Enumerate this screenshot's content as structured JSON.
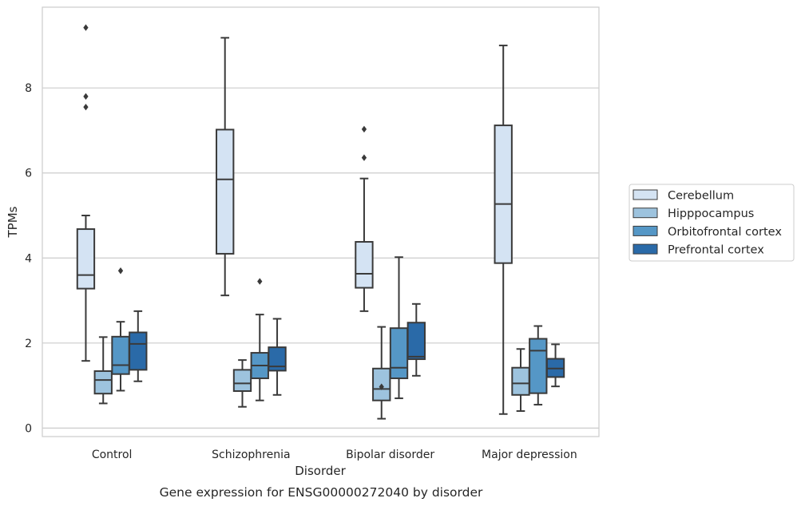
{
  "chart_data": {
    "type": "box",
    "title": "",
    "caption": "Gene expression for ENSG00000272040 by disorder",
    "xlabel": "Disorder",
    "ylabel": "TPMs",
    "ylim": [
      -0.2,
      9.9
    ],
    "yticks": [
      0,
      2,
      4,
      6,
      8
    ],
    "grid": "horizontal",
    "legend_position": "right",
    "categories": [
      "Control",
      "Schizophrenia",
      "Bipolar disorder",
      "Major depression"
    ],
    "series": [
      {
        "name": "Cerebellum",
        "color": "#d4e3f3",
        "boxes": [
          {
            "whislo": 1.58,
            "q1": 3.28,
            "med": 3.6,
            "q3": 4.68,
            "whishi": 5.0,
            "fliers": [
              7.55,
              7.8,
              9.42
            ]
          },
          {
            "whislo": 3.12,
            "q1": 4.1,
            "med": 5.85,
            "q3": 7.02,
            "whishi": 9.18,
            "fliers": []
          },
          {
            "whislo": 2.75,
            "q1": 3.3,
            "med": 3.63,
            "q3": 4.38,
            "whishi": 5.87,
            "fliers": [
              6.36,
              7.03
            ]
          },
          {
            "whislo": 0.33,
            "q1": 3.88,
            "med": 5.27,
            "q3": 7.12,
            "whishi": 9.0,
            "fliers": []
          }
        ]
      },
      {
        "name": "Hipppocampus",
        "color": "#9dc3de",
        "boxes": [
          {
            "whislo": 0.58,
            "q1": 0.81,
            "med": 1.13,
            "q3": 1.34,
            "whishi": 2.14,
            "fliers": []
          },
          {
            "whislo": 0.5,
            "q1": 0.87,
            "med": 1.05,
            "q3": 1.37,
            "whishi": 1.6,
            "fliers": []
          },
          {
            "whislo": 0.22,
            "q1": 0.65,
            "med": 0.92,
            "q3": 1.4,
            "whishi": 2.38,
            "fliers": [
              0.97
            ]
          },
          {
            "whislo": 0.4,
            "q1": 0.78,
            "med": 1.05,
            "q3": 1.42,
            "whishi": 1.86,
            "fliers": []
          }
        ]
      },
      {
        "name": "Orbitofrontal cortex",
        "color": "#5597c6",
        "boxes": [
          {
            "whislo": 0.88,
            "q1": 1.27,
            "med": 1.48,
            "q3": 2.15,
            "whishi": 2.5,
            "fliers": [
              3.7
            ]
          },
          {
            "whislo": 0.65,
            "q1": 1.17,
            "med": 1.47,
            "q3": 1.77,
            "whishi": 2.67,
            "fliers": [
              3.45
            ]
          },
          {
            "whislo": 0.7,
            "q1": 1.17,
            "med": 1.42,
            "q3": 2.35,
            "whishi": 4.02,
            "fliers": []
          },
          {
            "whislo": 0.55,
            "q1": 0.82,
            "med": 1.82,
            "q3": 2.1,
            "whishi": 2.4,
            "fliers": []
          }
        ]
      },
      {
        "name": "Prefrontal cortex",
        "color": "#2a6aa8",
        "boxes": [
          {
            "whislo": 1.1,
            "q1": 1.37,
            "med": 1.98,
            "q3": 2.25,
            "whishi": 2.75,
            "fliers": []
          },
          {
            "whislo": 0.78,
            "q1": 1.35,
            "med": 1.45,
            "q3": 1.9,
            "whishi": 2.57,
            "fliers": []
          },
          {
            "whislo": 1.23,
            "q1": 1.62,
            "med": 1.68,
            "q3": 2.48,
            "whishi": 2.92,
            "fliers": []
          },
          {
            "whislo": 0.98,
            "q1": 1.2,
            "med": 1.4,
            "q3": 1.63,
            "whishi": 1.97,
            "fliers": []
          }
        ]
      }
    ]
  }
}
